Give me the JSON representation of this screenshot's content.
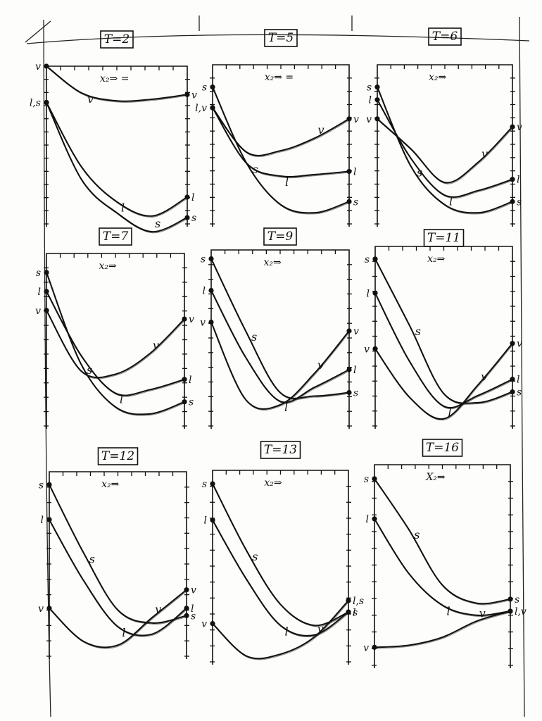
{
  "chart_data": [
    {
      "type": "line",
      "title": "T=2",
      "x_axis_label": "x₂⇒ =",
      "xlabel": "x₂",
      "x": [
        0,
        0.25,
        0.5,
        0.75,
        1
      ],
      "ylim": [
        0,
        10
      ],
      "series": [
        {
          "name": "v",
          "values": [
            10,
            8.3,
            7.8,
            7.9,
            8.2
          ],
          "start_label": "v",
          "end_label": "v",
          "curve_label": "v"
        },
        {
          "name": "l",
          "values": [
            7.7,
            3.6,
            1.4,
            0.5,
            1.7
          ],
          "start_label": "l,s",
          "end_label": "l",
          "curve_label": "l"
        },
        {
          "name": "s",
          "values": [
            7.7,
            2.8,
            0.7,
            -0.5,
            0.4
          ],
          "start_label": "",
          "end_label": "s",
          "curve_label": "s"
        }
      ]
    },
    {
      "type": "line",
      "title": "T=5",
      "x_axis_label": "x₂⇒ =",
      "xlabel": "x₂",
      "x": [
        0,
        0.25,
        0.5,
        0.75,
        1
      ],
      "ylim": [
        0,
        10
      ],
      "series": [
        {
          "name": "s",
          "values": [
            8.6,
            3.8,
            1.2,
            0.7,
            1.4
          ],
          "start_label": "s",
          "end_label": "s",
          "curve_label": "s"
        },
        {
          "name": "l",
          "values": [
            7.3,
            3.8,
            3.0,
            3.1,
            3.3
          ],
          "start_label": "l,v",
          "end_label": "l",
          "curve_label": "l"
        },
        {
          "name": "v",
          "values": [
            7.3,
            4.5,
            4.6,
            5.4,
            6.6
          ],
          "start_label": "",
          "end_label": "v",
          "curve_label": "v"
        }
      ]
    },
    {
      "type": "line",
      "title": "T=6",
      "x_axis_label": "x₂⇒",
      "xlabel": "x₂",
      "x": [
        0,
        0.25,
        0.5,
        0.75,
        1
      ],
      "ylim": [
        0,
        10
      ],
      "series": [
        {
          "name": "s",
          "values": [
            8.6,
            3.6,
            1.2,
            0.7,
            1.4
          ],
          "start_label": "s",
          "end_label": "s",
          "curve_label": "s"
        },
        {
          "name": "l",
          "values": [
            7.8,
            4.1,
            1.8,
            2.1,
            2.8
          ],
          "start_label": "l",
          "end_label": "l",
          "curve_label": "l"
        },
        {
          "name": "v",
          "values": [
            6.6,
            4.7,
            2.6,
            3.9,
            6.1
          ],
          "start_label": "v",
          "end_label": "v",
          "curve_label": "v"
        }
      ]
    },
    {
      "type": "line",
      "title": "T=7",
      "x_axis_label": "x₂⇒",
      "xlabel": "x₂",
      "x": [
        0,
        0.25,
        0.5,
        0.75,
        1
      ],
      "ylim": [
        0,
        10
      ],
      "series": [
        {
          "name": "s",
          "values": [
            8.9,
            3.6,
            1.1,
            0.7,
            1.4
          ],
          "start_label": "s",
          "end_label": "s",
          "curve_label": "s"
        },
        {
          "name": "l",
          "values": [
            7.8,
            4.1,
            1.9,
            2.1,
            2.7
          ],
          "start_label": "l",
          "end_label": "l",
          "curve_label": "l"
        },
        {
          "name": "v",
          "values": [
            6.7,
            3.2,
            3.0,
            4.2,
            6.2
          ],
          "start_label": "v",
          "end_label": "v",
          "curve_label": "v"
        }
      ]
    },
    {
      "type": "line",
      "title": "T=9",
      "x_axis_label": "x₂⇒",
      "xlabel": "x₂",
      "x": [
        0,
        0.25,
        0.5,
        0.75,
        1
      ],
      "ylim": [
        0,
        10
      ],
      "series": [
        {
          "name": "s",
          "values": [
            9.5,
            5.4,
            1.9,
            1.7,
            1.9
          ],
          "start_label": "s",
          "end_label": "s",
          "curve_label": "s"
        },
        {
          "name": "l",
          "values": [
            7.7,
            3.9,
            1.4,
            2.2,
            3.2
          ],
          "start_label": "l",
          "end_label": "l",
          "curve_label": "l"
        },
        {
          "name": "v",
          "values": [
            5.9,
            1.5,
            1.2,
            3.0,
            5.4
          ],
          "start_label": "v",
          "end_label": "v",
          "curve_label": "v"
        }
      ]
    },
    {
      "type": "line",
      "title": "T=11",
      "x_axis_label": "x₂⇒",
      "xlabel": "x₂",
      "x": [
        0,
        0.25,
        0.5,
        0.75,
        1
      ],
      "ylim": [
        0,
        10
      ],
      "series": [
        {
          "name": "s",
          "values": [
            9.3,
            5.6,
            1.8,
            1.3,
            1.9
          ],
          "start_label": "s",
          "end_label": "s",
          "curve_label": "s"
        },
        {
          "name": "l",
          "values": [
            7.4,
            3.6,
            1.1,
            1.7,
            2.6
          ],
          "start_label": "l",
          "end_label": "l",
          "curve_label": "l"
        },
        {
          "name": "v",
          "values": [
            4.3,
            1.6,
            0.4,
            2.3,
            4.6
          ],
          "start_label": "v",
          "end_label": "v",
          "curve_label": "v"
        }
      ]
    },
    {
      "type": "line",
      "title": "T=12",
      "x_axis_label": "x₂⇒",
      "xlabel": "x₂",
      "x": [
        0,
        0.25,
        0.5,
        0.75,
        1
      ],
      "ylim": [
        0,
        10
      ],
      "series": [
        {
          "name": "s",
          "values": [
            9.3,
            5.6,
            2.5,
            1.8,
            2.2
          ],
          "start_label": "s",
          "end_label": "s",
          "curve_label": "s"
        },
        {
          "name": "l",
          "values": [
            7.4,
            4.1,
            1.6,
            1.2,
            2.6
          ],
          "start_label": "l",
          "end_label": "l",
          "curve_label": "l"
        },
        {
          "name": "v",
          "values": [
            2.6,
            0.8,
            0.6,
            2.1,
            3.6
          ],
          "start_label": "v",
          "end_label": "v",
          "curve_label": "v"
        }
      ]
    },
    {
      "type": "line",
      "title": "T=13",
      "x_axis_label": "x₂⇒",
      "xlabel": "x₂",
      "x": [
        0,
        0.25,
        0.5,
        0.75,
        1
      ],
      "ylim": [
        0,
        10
      ],
      "series": [
        {
          "name": "s",
          "values": [
            9.3,
            5.8,
            3.0,
            1.9,
            2.6
          ],
          "start_label": "s",
          "end_label": "s",
          "curve_label": "s"
        },
        {
          "name": "l",
          "values": [
            7.4,
            4.3,
            1.9,
            1.4,
            2.6
          ],
          "start_label": "l",
          "end_label": "l",
          "curve_label": "l"
        },
        {
          "name": "v",
          "values": [
            2.0,
            0.3,
            0.4,
            1.3,
            3.2
          ],
          "start_label": "v",
          "end_label": "l,s",
          "curve_label": "v"
        }
      ]
    },
    {
      "type": "line",
      "title": "T=16",
      "x_axis_label": "X₂⇒",
      "xlabel": "x₂",
      "x": [
        0,
        0.25,
        0.5,
        0.75,
        1
      ],
      "ylim": [
        0,
        10
      ],
      "series": [
        {
          "name": "s",
          "values": [
            9.3,
            6.8,
            4.0,
            3.1,
            3.3
          ],
          "start_label": "s",
          "end_label": "s",
          "curve_label": "s"
        },
        {
          "name": "l",
          "values": [
            7.3,
            4.6,
            3.0,
            2.5,
            2.7
          ],
          "start_label": "l",
          "end_label": "l,v",
          "curve_label": "l"
        },
        {
          "name": "v",
          "values": [
            0.9,
            1.0,
            1.4,
            2.2,
            2.7
          ],
          "start_label": "v",
          "end_label": "",
          "curve_label": "v"
        }
      ]
    }
  ]
}
